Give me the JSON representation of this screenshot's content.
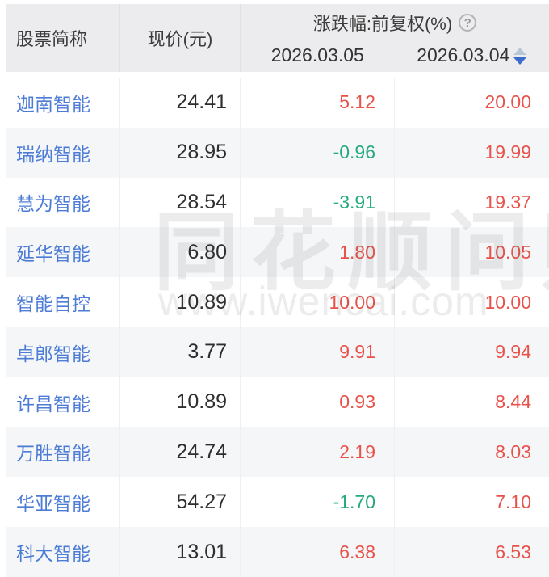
{
  "table": {
    "headers": {
      "name": "股票简称",
      "price": "现价(元)",
      "change_group": "涨跌幅:前复权(%)",
      "help_glyph": "?",
      "date1": "2026.03.05",
      "date2": "2026.03.04"
    },
    "sort": {
      "column": "2026.03.04",
      "direction": "desc"
    },
    "rows": [
      {
        "name": "迦南智能",
        "price": "24.41",
        "chg_0305": "5.12",
        "chg_0304": "20.00"
      },
      {
        "name": "瑞纳智能",
        "price": "28.95",
        "chg_0305": "-0.96",
        "chg_0304": "19.99"
      },
      {
        "name": "慧为智能",
        "price": "28.54",
        "chg_0305": "-3.91",
        "chg_0304": "19.37"
      },
      {
        "name": "延华智能",
        "price": "6.80",
        "chg_0305": "1.80",
        "chg_0304": "10.05"
      },
      {
        "name": "智能自控",
        "price": "10.89",
        "chg_0305": "10.00",
        "chg_0304": "10.00"
      },
      {
        "name": "卓郎智能",
        "price": "3.77",
        "chg_0305": "9.91",
        "chg_0304": "9.94"
      },
      {
        "name": "许昌智能",
        "price": "10.89",
        "chg_0305": "0.93",
        "chg_0304": "8.44"
      },
      {
        "name": "万胜智能",
        "price": "24.74",
        "chg_0305": "2.19",
        "chg_0304": "8.03"
      },
      {
        "name": "华亚智能",
        "price": "54.27",
        "chg_0305": "-1.70",
        "chg_0304": "7.10"
      },
      {
        "name": "科大智能",
        "price": "13.01",
        "chg_0305": "6.38",
        "chg_0304": "6.53"
      }
    ]
  },
  "watermark": {
    "line1": "同花顺问财",
    "line2": "www.iwencai.com"
  },
  "icons": {
    "help": "help-icon",
    "sort": "sort-icon"
  },
  "colors": {
    "up": "#e8524a",
    "down": "#27a97e",
    "link": "#4d7cd6",
    "header_bg": "#ececee",
    "alt_row_bg": "#f5f6f8"
  }
}
